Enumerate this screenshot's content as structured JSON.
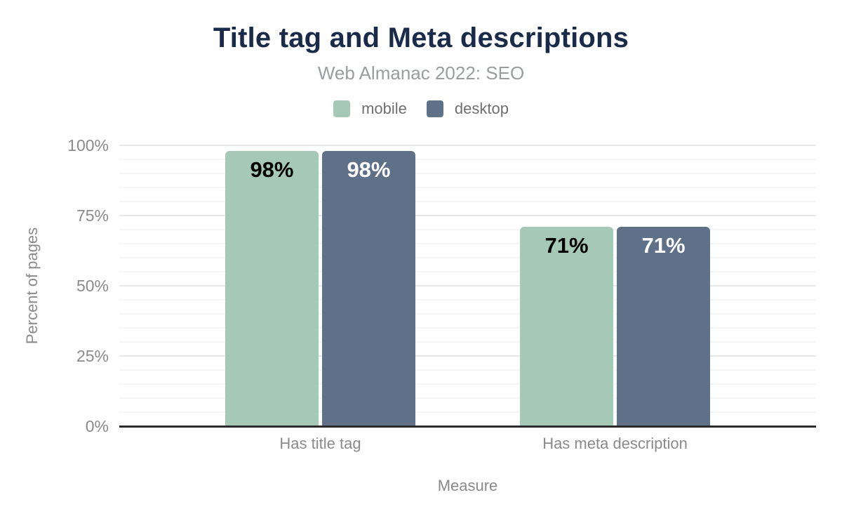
{
  "header": {
    "title": "Title tag and Meta descriptions",
    "subtitle": "Web Almanac 2022: SEO"
  },
  "chart_data": {
    "type": "bar",
    "title": "Title tag and Meta descriptions",
    "subtitle": "Web Almanac 2022: SEO",
    "categories": [
      "Has title tag",
      "Has meta description"
    ],
    "series": [
      {
        "name": "mobile",
        "color": "#a6c8b7",
        "value_label_color": "#000000",
        "values": [
          98,
          71
        ]
      },
      {
        "name": "desktop",
        "color": "#5f7189",
        "value_label_color": "#ffffff",
        "values": [
          98,
          71
        ]
      }
    ],
    "value_format": "{v}%",
    "xlabel": "Measure",
    "ylabel": "Percent of pages",
    "ylim": [
      0,
      100
    ],
    "yticks": [
      0,
      25,
      50,
      75,
      100
    ],
    "ytick_format": "{v}%",
    "major_grid_step": 25,
    "minor_grid_step": 5,
    "grid": true,
    "legend_position": "top",
    "axis_line_color": "#2b2b2b"
  }
}
